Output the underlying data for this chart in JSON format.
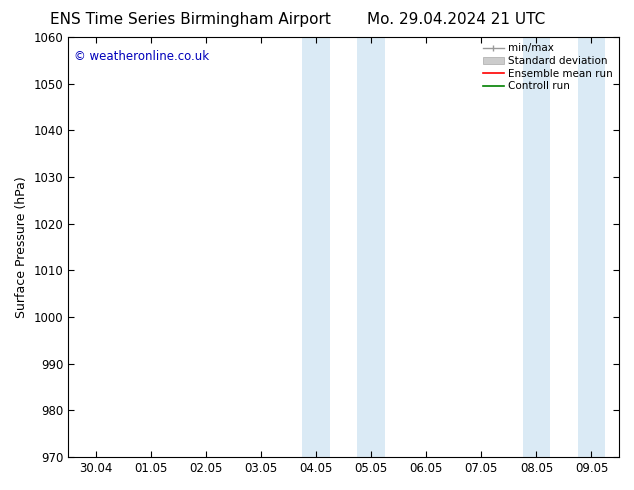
{
  "title_left": "ENS Time Series Birmingham Airport",
  "title_right": "Mo. 29.04.2024 21 UTC",
  "ylabel": "Surface Pressure (hPa)",
  "ylim": [
    970,
    1060
  ],
  "yticks": [
    970,
    980,
    990,
    1000,
    1010,
    1020,
    1030,
    1040,
    1050,
    1060
  ],
  "xlabels": [
    "30.04",
    "01.05",
    "02.05",
    "03.05",
    "04.05",
    "05.05",
    "06.05",
    "07.05",
    "08.05",
    "09.05"
  ],
  "x_values": [
    0,
    1,
    2,
    3,
    4,
    5,
    6,
    7,
    8,
    9
  ],
  "xlim": [
    -0.5,
    9.5
  ],
  "shaded_bands": [
    {
      "x_start": 3.75,
      "x_end": 4.25,
      "color": "#daeaf5"
    },
    {
      "x_start": 4.75,
      "x_end": 5.25,
      "color": "#daeaf5"
    },
    {
      "x_start": 7.75,
      "x_end": 8.25,
      "color": "#daeaf5"
    },
    {
      "x_start": 8.75,
      "x_end": 9.25,
      "color": "#daeaf5"
    }
  ],
  "watermark": "© weatheronline.co.uk",
  "watermark_color": "#0000bb",
  "legend_entries": [
    {
      "label": "min/max",
      "color": "#999999"
    },
    {
      "label": "Standard deviation",
      "color": "#cccccc"
    },
    {
      "label": "Ensemble mean run",
      "color": "#ff0000"
    },
    {
      "label": "Controll run",
      "color": "#008000"
    }
  ],
  "bg_color": "#ffffff",
  "title_fontsize": 11,
  "tick_fontsize": 8.5,
  "ylabel_fontsize": 9
}
